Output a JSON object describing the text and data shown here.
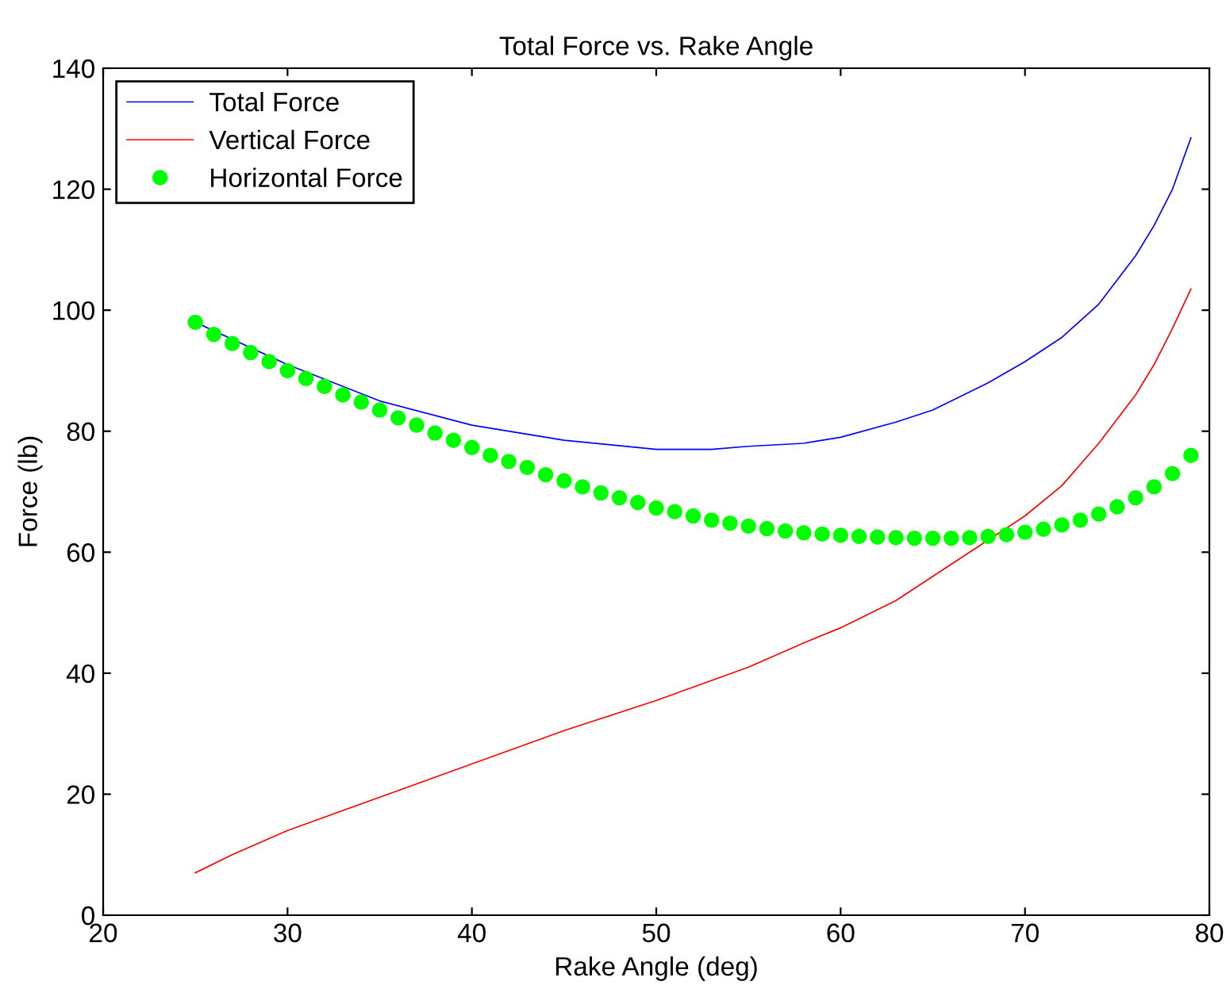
{
  "chart_data": {
    "type": "line",
    "title": "Total Force vs. Rake Angle",
    "xlabel": "Rake Angle (deg)",
    "ylabel": "Force (lb)",
    "xlim": [
      20,
      80
    ],
    "xticks": [
      20,
      30,
      40,
      50,
      60,
      70,
      80
    ],
    "ylim": [
      0,
      140
    ],
    "yticks": [
      0,
      20,
      40,
      60,
      80,
      100,
      120,
      140
    ],
    "grid": false,
    "legend": "top left",
    "series": [
      {
        "name": "Total Force",
        "color": "#0000ff",
        "marker": "none",
        "line_style": "solid",
        "x": [
          25,
          30,
          35,
          40,
          45,
          50,
          53,
          55,
          58,
          60,
          63,
          65,
          68,
          70,
          72,
          74,
          76,
          77,
          78,
          79
        ],
        "values": [
          98,
          91,
          85,
          81,
          78.5,
          77,
          77,
          77.5,
          78,
          79,
          81.5,
          83.5,
          88,
          91.5,
          95.5,
          101,
          109,
          114,
          120,
          128.5
        ]
      },
      {
        "name": "Vertical Force",
        "color": "#ff0000",
        "marker": "none",
        "line_style": "solid",
        "x": [
          25,
          27,
          30,
          35,
          40,
          45,
          50,
          55,
          58,
          60,
          63,
          65,
          68,
          70,
          72,
          74,
          76,
          77,
          78,
          79
        ],
        "values": [
          7,
          10,
          14,
          19.5,
          25,
          30.5,
          35.5,
          41,
          45,
          47.5,
          52,
          56,
          62,
          66,
          71,
          78,
          86,
          91,
          97,
          103.5
        ]
      },
      {
        "name": "Horizontal Force",
        "type": "scatter",
        "color": "#00ff00",
        "marker": "circle",
        "x": [
          25,
          26,
          27,
          28,
          29,
          30,
          31,
          32,
          33,
          34,
          35,
          36,
          37,
          38,
          39,
          40,
          41,
          42,
          43,
          44,
          45,
          46,
          47,
          48,
          49,
          50,
          51,
          52,
          53,
          54,
          55,
          56,
          57,
          58,
          59,
          60,
          61,
          62,
          63,
          64,
          65,
          66,
          67,
          68,
          69,
          70,
          71,
          72,
          73,
          74,
          75,
          76,
          77,
          78,
          79
        ],
        "values": [
          98,
          96,
          94.5,
          93,
          91.5,
          90,
          88.7,
          87.4,
          86,
          84.8,
          83.5,
          82.2,
          81,
          79.7,
          78.5,
          77.3,
          76,
          75,
          74,
          72.8,
          71.8,
          70.8,
          69.8,
          69,
          68.2,
          67.3,
          66.7,
          66,
          65.3,
          64.8,
          64.3,
          63.9,
          63.5,
          63.2,
          63,
          62.8,
          62.6,
          62.5,
          62.4,
          62.3,
          62.3,
          62.3,
          62.4,
          62.6,
          62.9,
          63.3,
          63.8,
          64.5,
          65.3,
          66.3,
          67.5,
          69,
          70.8,
          73,
          76
        ]
      }
    ]
  }
}
